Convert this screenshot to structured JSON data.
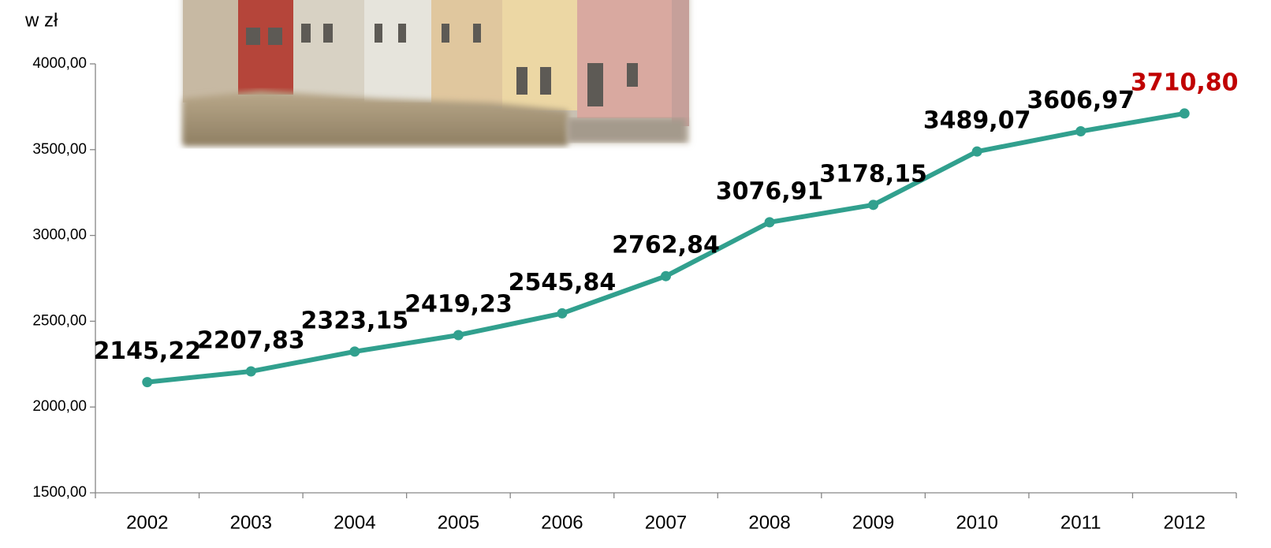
{
  "chart_data": {
    "type": "line",
    "y_axis_label": "w zł",
    "categories": [
      "2002",
      "2003",
      "2004",
      "2005",
      "2006",
      "2007",
      "2008",
      "2009",
      "2010",
      "2011",
      "2012"
    ],
    "values": [
      2145.22,
      2207.83,
      2323.15,
      2419.23,
      2545.84,
      2762.84,
      3076.91,
      3178.15,
      3489.07,
      3606.97,
      3710.8
    ],
    "value_labels": [
      "2145,22",
      "2207,83",
      "2323,15",
      "2419,23",
      "2545,84",
      "2762,84",
      "3076,91",
      "3178,15",
      "3489,07",
      "3606,97",
      "3710,80"
    ],
    "value_label_colors": [
      "#000000",
      "#000000",
      "#000000",
      "#000000",
      "#000000",
      "#000000",
      "#000000",
      "#000000",
      "#000000",
      "#000000",
      "#c00000"
    ],
    "color": "#31a08e",
    "ylim": [
      1500,
      4000
    ],
    "yticks": [
      {
        "value": 1500,
        "label": "1500,00"
      },
      {
        "value": 2000,
        "label": "2000,00"
      },
      {
        "value": 2500,
        "label": "2500,00"
      },
      {
        "value": 3000,
        "label": "3000,00"
      },
      {
        "value": 3500,
        "label": "3500,00"
      },
      {
        "value": 4000,
        "label": "4000,00"
      }
    ],
    "grid": false
  }
}
